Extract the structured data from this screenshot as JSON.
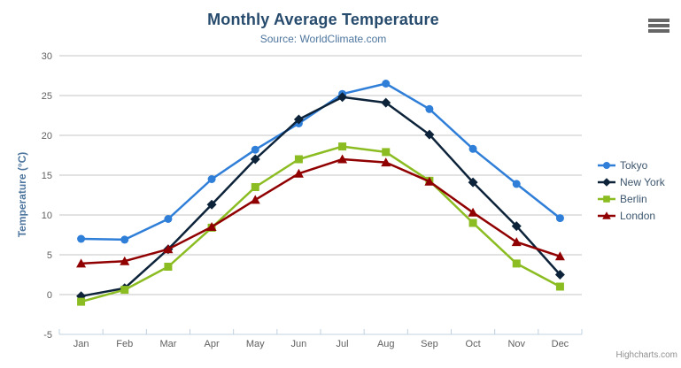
{
  "chart_data": {
    "type": "line",
    "title": "Monthly Average Temperature",
    "subtitle": "Source: WorldClimate.com",
    "categories": [
      "Jan",
      "Feb",
      "Mar",
      "Apr",
      "May",
      "Jun",
      "Jul",
      "Aug",
      "Sep",
      "Oct",
      "Nov",
      "Dec"
    ],
    "xlabel": "",
    "ylabel": "Temperature (°C)",
    "ylim": [
      -5,
      30
    ],
    "yticks": [
      -5,
      0,
      5,
      10,
      15,
      20,
      25,
      30
    ],
    "grid": true,
    "legend_position": "right",
    "series": [
      {
        "name": "Tokyo",
        "color": "#2f7ed8",
        "marker": "circle",
        "values": [
          7.0,
          6.9,
          9.5,
          14.5,
          18.2,
          21.5,
          25.2,
          26.5,
          23.3,
          18.3,
          13.9,
          9.6
        ]
      },
      {
        "name": "New York",
        "color": "#0d233a",
        "marker": "diamond",
        "values": [
          -0.2,
          0.8,
          5.7,
          11.3,
          17.0,
          22.0,
          24.8,
          24.1,
          20.1,
          14.1,
          8.6,
          2.5
        ]
      },
      {
        "name": "Berlin",
        "color": "#8bbc21",
        "marker": "square",
        "values": [
          -0.9,
          0.6,
          3.5,
          8.4,
          13.5,
          17.0,
          18.6,
          17.9,
          14.3,
          9.0,
          3.9,
          1.0
        ]
      },
      {
        "name": "London",
        "color": "#910000",
        "marker": "triangle",
        "values": [
          3.9,
          4.2,
          5.7,
          8.5,
          11.9,
          15.2,
          17.0,
          16.6,
          14.2,
          10.3,
          6.6,
          4.8
        ]
      }
    ]
  },
  "colors": {
    "background": "#ffffff",
    "title": "#274b6d",
    "subtitle": "#4d759e",
    "axis_title": "#4d759e",
    "tick_label": "#606060",
    "grid": "#c6c6c6",
    "axis_line": "#c0d0e0",
    "legend_text": "#3e576f",
    "credit": "#909090",
    "menu_icon": "#666666"
  },
  "credits": {
    "text": "Highcharts.com"
  },
  "menu_button": {
    "icon": "hamburger-icon"
  }
}
